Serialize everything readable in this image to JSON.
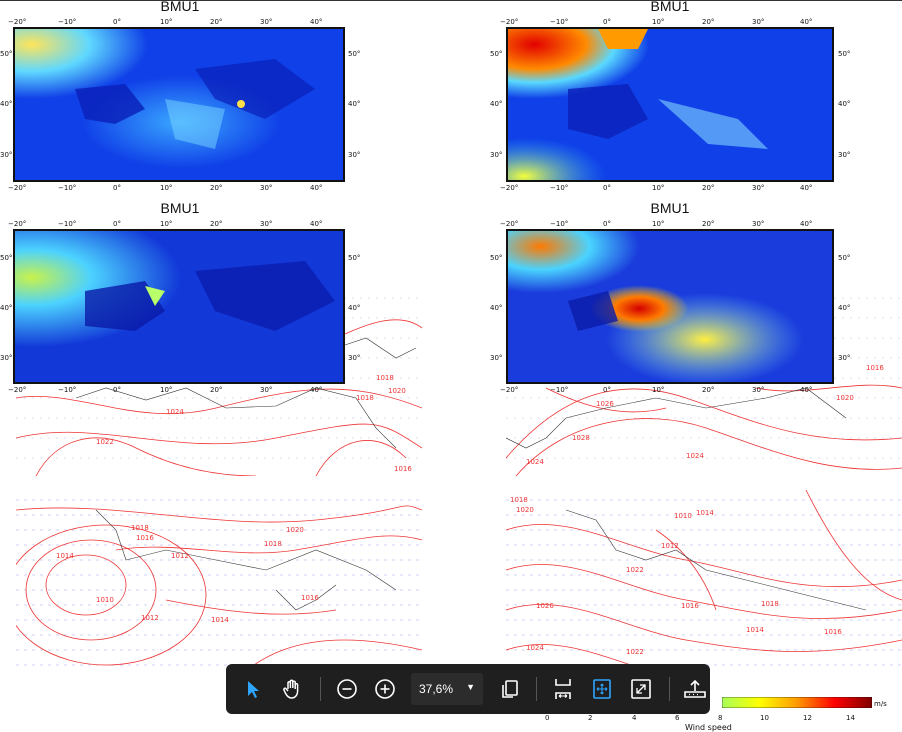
{
  "panels": [
    {
      "title": "BMU1",
      "top_ticks": [
        "−20°",
        "−10°",
        "0°",
        "10°",
        "20°",
        "30°",
        "40°"
      ],
      "left_ticks": [
        "50°",
        "40°",
        "30°"
      ],
      "right_ticks": [
        "50°",
        "40°",
        "30°"
      ],
      "bottom_ticks": [
        "−20°",
        "−10°",
        "0°",
        "10°",
        "20°",
        "30°",
        "40°"
      ]
    },
    {
      "title": "BMU1",
      "top_ticks": [
        "−20°",
        "−10°",
        "0°",
        "10°",
        "20°",
        "30°",
        "40°"
      ],
      "left_ticks": [
        "50°",
        "40°",
        "30°"
      ],
      "right_ticks": [
        "50°",
        "40°",
        "30°"
      ],
      "bottom_ticks": [
        "−20°",
        "−10°",
        "0°",
        "10°",
        "20°",
        "30°",
        "40°"
      ]
    },
    {
      "title": "BMU1",
      "top_ticks": [
        "−20°",
        "−10°",
        "0°",
        "10°",
        "20°",
        "30°",
        "40°"
      ],
      "left_ticks": [
        "50°",
        "40°",
        "30°"
      ],
      "right_ticks": [
        "50°",
        "40°",
        "30°"
      ],
      "bottom_ticks": [
        "−20°",
        "−10°",
        "0°",
        "10°",
        "20°",
        "30°",
        "40°"
      ]
    },
    {
      "title": "BMU1",
      "top_ticks": [
        "−20°",
        "−10°",
        "0°",
        "10°",
        "20°",
        "30°",
        "40°"
      ],
      "left_ticks": [
        "50°",
        "40°",
        "30°"
      ],
      "right_ticks": [
        "50°",
        "40°",
        "30°"
      ],
      "bottom_ticks": [
        "−20°",
        "−10°",
        "0°",
        "10°",
        "20°",
        "30°",
        "40°"
      ]
    }
  ],
  "isobar_labels": {
    "a": [
      "1024",
      "1022",
      "1020",
      "1018",
      "1016",
      "1018"
    ],
    "b": [
      "1024",
      "1026",
      "1024",
      "1028",
      "1020",
      "1016"
    ],
    "c": [
      "1018",
      "1016",
      "1014",
      "1012",
      "1010",
      "1012",
      "1014",
      "1016",
      "1018",
      "1020"
    ],
    "d": [
      "1018",
      "1020",
      "1010",
      "1014",
      "1012",
      "1022",
      "1016",
      "1018",
      "1014",
      "1016",
      "1022",
      "1026",
      "1024"
    ]
  },
  "toolbar": {
    "zoom_value": "37,6%",
    "tools": [
      "select-tool",
      "hand-tool",
      "zoom-out",
      "zoom-in",
      "page-copy",
      "fit-width",
      "fit-page",
      "fullscreen",
      "upload"
    ]
  },
  "colorbar": {
    "ticks": [
      "0",
      "2",
      "4",
      "6",
      "8",
      "10",
      "12",
      "14"
    ],
    "unit": "m/s",
    "label": "Wind speed",
    "colors": [
      "#00007f",
      "#0000ff",
      "#00bfff",
      "#7fffff",
      "#ffff00",
      "#ff7f00",
      "#ff0000",
      "#7f0000"
    ]
  }
}
